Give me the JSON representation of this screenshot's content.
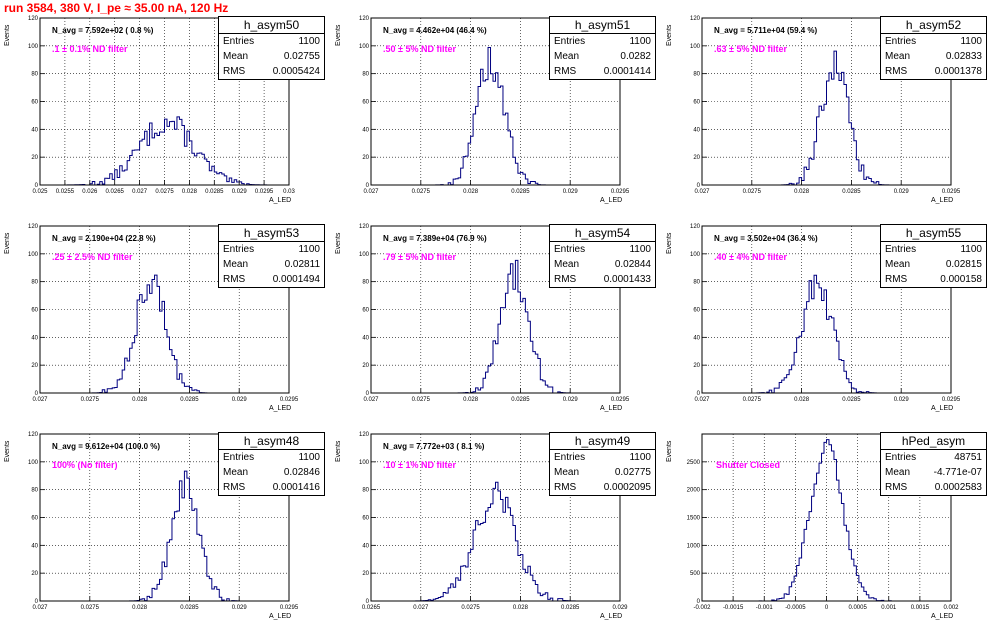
{
  "header": {
    "run_title": "run 3584,   380 V, I_pe ≈ 35.00 nA, 120 Hz"
  },
  "colors": {
    "histogram_line": "#000080",
    "title_red": "#ff0000",
    "filter_magenta": "#ff00ff",
    "grid": "#000000"
  },
  "chart_data": [
    {
      "type": "histogram",
      "name": "h_asym50",
      "stats": {
        "title": "h_asym50",
        "entries_label": "Entries",
        "entries": "1100",
        "mean_label": "Mean",
        "mean": "0.02755",
        "rms_label": "RMS",
        "rms": "0.0005424"
      },
      "navg": "N_avg = 7.592e+02 ( 0.8 %)",
      "filter": ".1 ± 0.1% ND filter",
      "ylabel": "Events",
      "xlabel": "A_LED",
      "xlim": [
        0.025,
        0.03
      ],
      "ylim": [
        0,
        120
      ],
      "xticks": [
        "0.025",
        "0.0255",
        "0.026",
        "0.0265",
        "0.027",
        "0.0275",
        "0.028",
        "0.0285",
        "0.029",
        "0.0295",
        "0.03"
      ],
      "xtick_values": [
        0.025,
        0.0255,
        0.026,
        0.0265,
        0.027,
        0.0275,
        0.028,
        0.0285,
        0.029,
        0.0295,
        0.03
      ],
      "yticks": [
        "0",
        "20",
        "40",
        "60",
        "80",
        "100",
        "120"
      ],
      "ytick_values": [
        0,
        20,
        40,
        60,
        80,
        100,
        120
      ],
      "xgrid": [
        0.0255,
        0.026,
        0.0265,
        0.027,
        0.0275,
        0.028,
        0.0285,
        0.029,
        0.0295
      ],
      "ygrid": [
        20,
        40,
        60,
        80,
        100,
        120
      ],
      "mu": 0.02755,
      "sigma": 0.0005424,
      "peak": 45
    },
    {
      "type": "histogram",
      "name": "h_asym51",
      "stats": {
        "title": "h_asym51",
        "entries_label": "Entries",
        "entries": "1100",
        "mean_label": "Mean",
        "mean": "0.0282",
        "rms_label": "RMS",
        "rms": "0.0001414"
      },
      "navg": "N_avg = 4.462e+04 (46.4 %)",
      "filter": ".50 ± 5% ND filter",
      "ylabel": "Events",
      "xlabel": "A_LED",
      "xlim": [
        0.027,
        0.0295
      ],
      "ylim": [
        0,
        120
      ],
      "xticks": [
        "0.027",
        "0.0275",
        "0.028",
        "0.0285",
        "0.029",
        "0.0295"
      ],
      "xtick_values": [
        0.027,
        0.0275,
        0.028,
        0.0285,
        0.029,
        0.0295
      ],
      "yticks": [
        "0",
        "20",
        "40",
        "60",
        "80",
        "100",
        "120"
      ],
      "ytick_values": [
        0,
        20,
        40,
        60,
        80,
        100,
        120
      ],
      "xgrid": [
        0.0275,
        0.028,
        0.0285,
        0.029
      ],
      "ygrid": [
        20,
        40,
        60,
        80,
        100,
        120
      ],
      "mu": 0.0282,
      "sigma": 0.0001414,
      "peak": 88
    },
    {
      "type": "histogram",
      "name": "h_asym52",
      "stats": {
        "title": "h_asym52",
        "entries_label": "Entries",
        "entries": "1100",
        "mean_label": "Mean",
        "mean": "0.02833",
        "rms_label": "RMS",
        "rms": "0.0001378"
      },
      "navg": "N_avg = 5.711e+04 (59.4 %)",
      "filter": ".63 ± 5% ND filter",
      "ylabel": "Events",
      "xlabel": "A_LED",
      "xlim": [
        0.027,
        0.0295
      ],
      "ylim": [
        0,
        120
      ],
      "xticks": [
        "0.027",
        "0.0275",
        "0.028",
        "0.0285",
        "0.029",
        "0.0295"
      ],
      "xtick_values": [
        0.027,
        0.0275,
        0.028,
        0.0285,
        0.029,
        0.0295
      ],
      "yticks": [
        "0",
        "20",
        "40",
        "60",
        "80",
        "100",
        "120"
      ],
      "ytick_values": [
        0,
        20,
        40,
        60,
        80,
        100,
        120
      ],
      "xgrid": [
        0.0275,
        0.028,
        0.0285,
        0.029
      ],
      "ygrid": [
        20,
        40,
        60,
        80,
        100,
        120
      ],
      "mu": 0.02833,
      "sigma": 0.0001378,
      "peak": 86
    },
    {
      "type": "histogram",
      "name": "h_asym53",
      "stats": {
        "title": "h_asym53",
        "entries_label": "Entries",
        "entries": "1100",
        "mean_label": "Mean",
        "mean": "0.02811",
        "rms_label": "RMS",
        "rms": "0.0001494"
      },
      "navg": "N_avg = 2.190e+04 (22.8 %)",
      "filter": ".25 ± 2.5% ND filter",
      "ylabel": "Events",
      "xlabel": "A_LED",
      "xlim": [
        0.027,
        0.0295
      ],
      "ylim": [
        0,
        120
      ],
      "xticks": [
        "0.027",
        "0.0275",
        "0.028",
        "0.0285",
        "0.029",
        "0.0295"
      ],
      "xtick_values": [
        0.027,
        0.0275,
        0.028,
        0.0285,
        0.029,
        0.0295
      ],
      "yticks": [
        "0",
        "20",
        "40",
        "60",
        "80",
        "100",
        "120"
      ],
      "ytick_values": [
        0,
        20,
        40,
        60,
        80,
        100,
        120
      ],
      "xgrid": [
        0.0275,
        0.028,
        0.0285,
        0.029
      ],
      "ygrid": [
        20,
        40,
        60,
        80,
        100,
        120
      ],
      "mu": 0.02811,
      "sigma": 0.0001494,
      "peak": 82
    },
    {
      "type": "histogram",
      "name": "h_asym54",
      "stats": {
        "title": "h_asym54",
        "entries_label": "Entries",
        "entries": "1100",
        "mean_label": "Mean",
        "mean": "0.02844",
        "rms_label": "RMS",
        "rms": "0.0001433"
      },
      "navg": "N_avg = 7.389e+04 (76.9 %)",
      "filter": ".79 ± 5% ND filter",
      "ylabel": "Events",
      "xlabel": "A_LED",
      "xlim": [
        0.027,
        0.0295
      ],
      "ylim": [
        0,
        120
      ],
      "xticks": [
        "0.027",
        "0.0275",
        "0.028",
        "0.0285",
        "0.029",
        "0.0295"
      ],
      "xtick_values": [
        0.027,
        0.0275,
        0.028,
        0.0285,
        0.029,
        0.0295
      ],
      "yticks": [
        "0",
        "20",
        "40",
        "60",
        "80",
        "100",
        "120"
      ],
      "ytick_values": [
        0,
        20,
        40,
        60,
        80,
        100,
        120
      ],
      "xgrid": [
        0.0275,
        0.028,
        0.0285,
        0.029
      ],
      "ygrid": [
        20,
        40,
        60,
        80,
        100,
        120
      ],
      "mu": 0.02844,
      "sigma": 0.0001433,
      "peak": 86
    },
    {
      "type": "histogram",
      "name": "h_asym55",
      "stats": {
        "title": "h_asym55",
        "entries_label": "Entries",
        "entries": "1100",
        "mean_label": "Mean",
        "mean": "0.02815",
        "rms_label": "RMS",
        "rms": "0.000158"
      },
      "navg": "N_avg = 3.502e+04 (36.4 %)",
      "filter": ".40 ± 4% ND filter",
      "ylabel": "Events",
      "xlabel": "A_LED",
      "xlim": [
        0.027,
        0.0295
      ],
      "ylim": [
        0,
        120
      ],
      "xticks": [
        "0.027",
        "0.0275",
        "0.028",
        "0.0285",
        "0.029",
        "0.0295"
      ],
      "xtick_values": [
        0.027,
        0.0275,
        0.028,
        0.0285,
        0.029,
        0.0295
      ],
      "yticks": [
        "0",
        "20",
        "40",
        "60",
        "80",
        "100",
        "120"
      ],
      "ytick_values": [
        0,
        20,
        40,
        60,
        80,
        100,
        120
      ],
      "xgrid": [
        0.0275,
        0.028,
        0.0285,
        0.029
      ],
      "ygrid": [
        20,
        40,
        60,
        80,
        100,
        120
      ],
      "mu": 0.02815,
      "sigma": 0.000158,
      "peak": 78
    },
    {
      "type": "histogram",
      "name": "h_asym48",
      "stats": {
        "title": "h_asym48",
        "entries_label": "Entries",
        "entries": "1100",
        "mean_label": "Mean",
        "mean": "0.02846",
        "rms_label": "RMS",
        "rms": "0.0001416"
      },
      "navg": "N_avg = 9.612e+04 (100.0 %)",
      "filter": "100% (No filter)",
      "ylabel": "Events",
      "xlabel": "A_LED",
      "xlim": [
        0.027,
        0.0295
      ],
      "ylim": [
        0,
        120
      ],
      "xticks": [
        "0.027",
        "0.0275",
        "0.028",
        "0.0285",
        "0.029",
        "0.0295"
      ],
      "xtick_values": [
        0.027,
        0.0275,
        0.028,
        0.0285,
        0.029,
        0.0295
      ],
      "yticks": [
        "0",
        "20",
        "40",
        "60",
        "80",
        "100",
        "120"
      ],
      "ytick_values": [
        0,
        20,
        40,
        60,
        80,
        100,
        120
      ],
      "xgrid": [
        0.0275,
        0.028,
        0.0285,
        0.029
      ],
      "ygrid": [
        20,
        40,
        60,
        80,
        100,
        120
      ],
      "mu": 0.02846,
      "sigma": 0.0001416,
      "peak": 84
    },
    {
      "type": "histogram",
      "name": "h_asym49",
      "stats": {
        "title": "h_asym49",
        "entries_label": "Entries",
        "entries": "1100",
        "mean_label": "Mean",
        "mean": "0.02775",
        "rms_label": "RMS",
        "rms": "0.0002095"
      },
      "navg": "N_avg = 7.772e+03 ( 8.1 %)",
      "filter": ".10 ± 1% ND filter",
      "ylabel": "Events",
      "xlabel": "A_LED",
      "xlim": [
        0.0265,
        0.029
      ],
      "ylim": [
        0,
        120
      ],
      "xticks": [
        "0.0265",
        "0.027",
        "0.0275",
        "0.028",
        "0.0285",
        "0.029"
      ],
      "xtick_values": [
        0.0265,
        0.027,
        0.0275,
        0.028,
        0.0285,
        0.029
      ],
      "yticks": [
        "0",
        "20",
        "40",
        "60",
        "80",
        "100",
        "120"
      ],
      "ytick_values": [
        0,
        20,
        40,
        60,
        80,
        100,
        120
      ],
      "xgrid": [
        0.027,
        0.0275,
        0.028,
        0.0285
      ],
      "ygrid": [
        20,
        40,
        60,
        80,
        100,
        120
      ],
      "mu": 0.02775,
      "sigma": 0.0002095,
      "peak": 76
    },
    {
      "type": "histogram",
      "name": "hPed_asym",
      "stats": {
        "title": "hPed_asym",
        "entries_label": "Entries",
        "entries": "48751",
        "mean_label": "Mean",
        "mean": "-4.771e-07",
        "rms_label": "RMS",
        "rms": "0.0002583"
      },
      "navg": "",
      "filter": "Shutter Closed",
      "ylabel": "Events",
      "xlabel": "A_LED",
      "xlim": [
        -0.002,
        0.002
      ],
      "ylim": [
        0,
        3000
      ],
      "xticks": [
        "-0.002",
        "-0.0015",
        "-0.001",
        "-0.0005",
        "0",
        "0.0005",
        "0.001",
        "0.0015",
        "0.002"
      ],
      "xtick_values": [
        -0.002,
        -0.0015,
        -0.001,
        -0.0005,
        0,
        0.0005,
        0.001,
        0.0015,
        0.002
      ],
      "yticks": [
        "0",
        "500",
        "1000",
        "1500",
        "2000",
        "2500"
      ],
      "ytick_values": [
        0,
        500,
        1000,
        1500,
        2000,
        2500
      ],
      "xgrid": [
        -0.0015,
        -0.001,
        -0.0005,
        0,
        0.0005,
        0.001,
        0.0015
      ],
      "ygrid": [
        500,
        1000,
        1500,
        2000,
        2500
      ],
      "mu": 0.0,
      "sigma": 0.0002583,
      "peak": 2800
    }
  ]
}
